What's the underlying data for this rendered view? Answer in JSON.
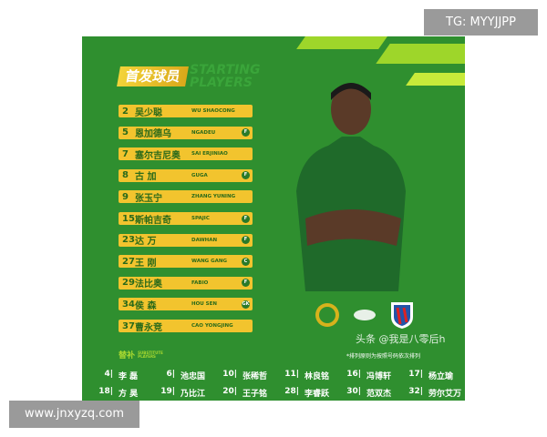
{
  "header": {
    "title_cn": "首发球员",
    "title_en_line1": "STARTING",
    "title_en_line2": "PLAYERS"
  },
  "starters": [
    {
      "number": "2",
      "name_cn": "吴少聪",
      "name_en": "WU SHAOCONG",
      "position": ""
    },
    {
      "number": "5",
      "name_cn": "恩加德乌",
      "name_en": "NGADEU",
      "position": "F"
    },
    {
      "number": "7",
      "name_cn": "塞尔吉尼奥",
      "name_en": "SAI ERJINIAO",
      "position": ""
    },
    {
      "number": "8",
      "name_cn": "古 加",
      "name_en": "GUGA",
      "position": "F"
    },
    {
      "number": "9",
      "name_cn": "张玉宁",
      "name_en": "ZHANG YUNING",
      "position": ""
    },
    {
      "number": "15",
      "name_cn": "斯帕吉奇",
      "name_en": "SPAJIC",
      "position": "F"
    },
    {
      "number": "23",
      "name_cn": "达 万",
      "name_en": "DAWHAN",
      "position": "F"
    },
    {
      "number": "27",
      "name_cn": "王 刚",
      "name_en": "WANG GANG",
      "position": "C"
    },
    {
      "number": "29",
      "name_cn": "法比奥",
      "name_en": "FABIO",
      "position": "F"
    },
    {
      "number": "34",
      "name_cn": "侯 森",
      "name_en": "HOU SEN",
      "position": "GK"
    },
    {
      "number": "37",
      "name_cn": "曹永竞",
      "name_en": "CAO YONGJING",
      "position": ""
    }
  ],
  "subs_title": {
    "cn": "替补",
    "en1": "SUBSTITUTE",
    "en2": "PLAYERS"
  },
  "subs": [
    [
      {
        "number": "4|",
        "name": "李 磊"
      },
      {
        "number": "6|",
        "name": "池忠国"
      },
      {
        "number": "10|",
        "name": "张稀哲"
      },
      {
        "number": "11|",
        "name": "林良铭"
      },
      {
        "number": "16|",
        "name": "冯博轩"
      },
      {
        "number": "17|",
        "name": "杨立瑜"
      }
    ],
    [
      {
        "number": "18|",
        "name": "方 昊"
      },
      {
        "number": "19|",
        "name": "乃比江"
      },
      {
        "number": "20|",
        "name": "王子铭"
      },
      {
        "number": "28|",
        "name": "李睿跃"
      },
      {
        "number": "30|",
        "name": "范双杰"
      },
      {
        "number": "32|",
        "name": "劳尔艾万"
      }
    ]
  ],
  "note": "*排列原则为按照号码依次排列",
  "watermark": "头条 @我是八零后h",
  "tag_top": "TG: MYYJJPP",
  "tag_bottom": "www.jnxyzq.com",
  "colors": {
    "background": "#2f8f2f",
    "bar": "#f2c42e",
    "accent": "#9ed62a"
  }
}
